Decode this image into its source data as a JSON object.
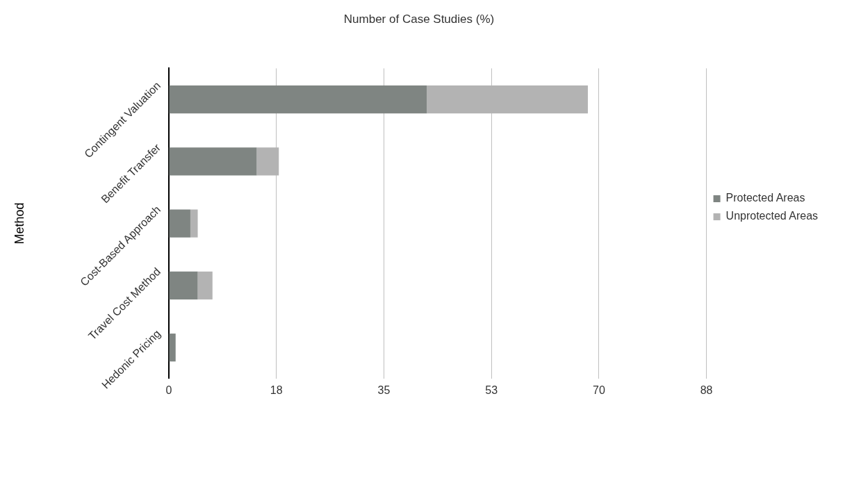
{
  "chart_data": {
    "type": "bar",
    "orientation": "horizontal",
    "stacked": true,
    "title": "Number of Case Studies (%)",
    "ylabel": "Method",
    "categories": [
      "Contingent Valuation",
      "Benefit Transfer",
      "Cost-Based Approach",
      "Travel Cost Method",
      "Hedonic Pricing"
    ],
    "series": [
      {
        "name": "Protected Areas",
        "color": "#7f8582",
        "values": [
          42,
          14.3,
          3.5,
          4.7,
          1.1
        ]
      },
      {
        "name": "Unprotected Areas",
        "color": "#b3b3b3",
        "values": [
          26.2,
          3.6,
          1.2,
          2.4,
          null
        ]
      }
    ],
    "xlim": [
      0,
      87.5
    ],
    "xticks": [
      0,
      {
        "value": 17.5,
        "label": "18"
      },
      35,
      {
        "value": 52.5,
        "label": "53"
      },
      70,
      {
        "value": 87.5,
        "label": "88"
      }
    ],
    "grid": "x",
    "legend": "right"
  }
}
